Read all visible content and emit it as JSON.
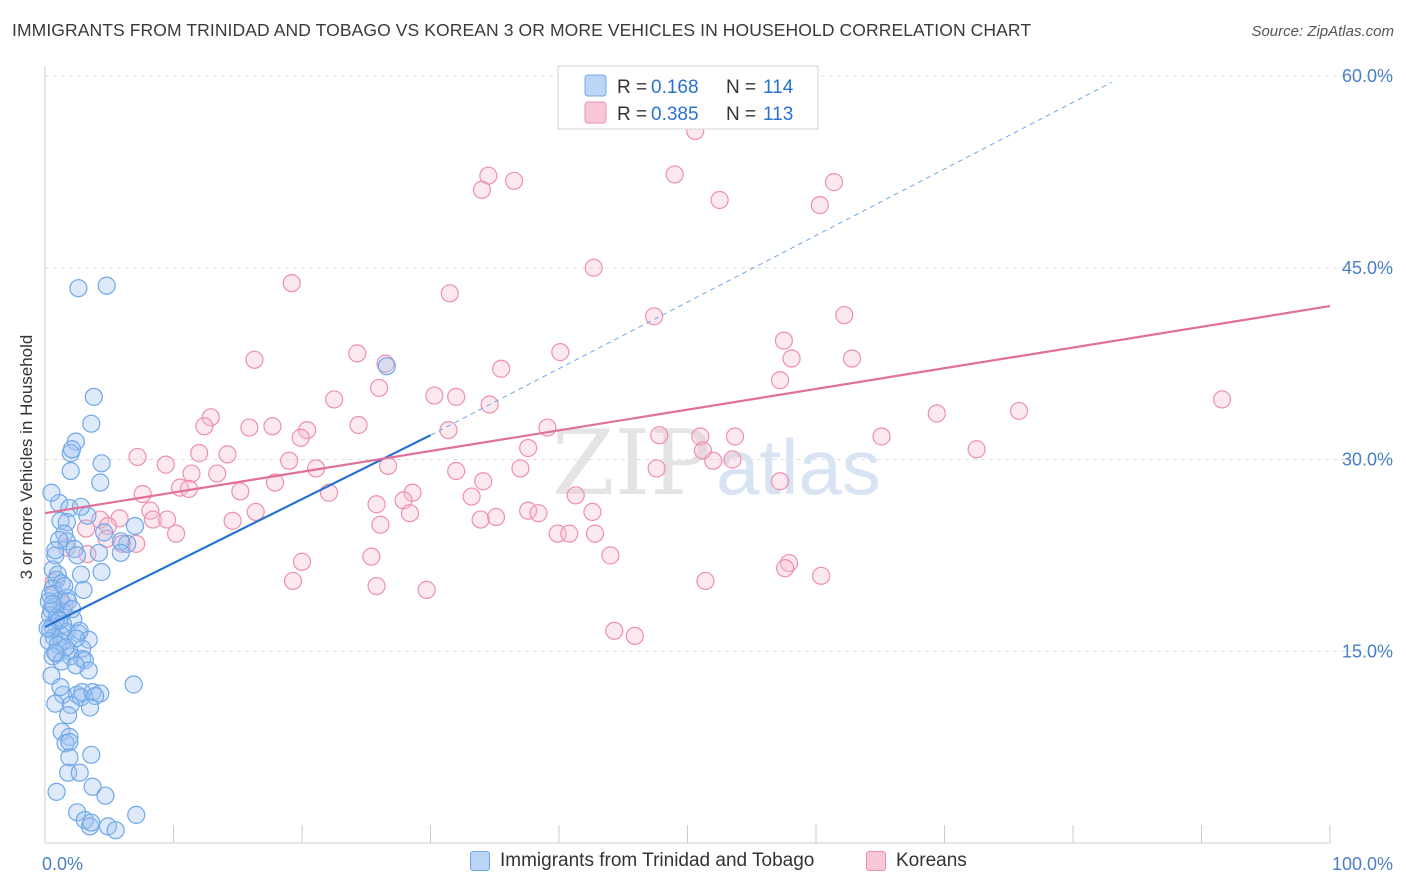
{
  "title": "IMMIGRANTS FROM TRINIDAD AND TOBAGO VS KOREAN 3 OR MORE VEHICLES IN HOUSEHOLD CORRELATION CHART",
  "source": "Source: ZipAtlas.com",
  "watermark": {
    "zip": "ZIP",
    "atlas": "atlas"
  },
  "colors": {
    "blue": "#6fa8e8",
    "blue_fill": "rgba(160,196,240,0.35)",
    "blue_line": "#2a72d0",
    "pink": "#ee8fb0",
    "pink_fill": "rgba(246,188,208,0.35)",
    "pink_line": "#e07099",
    "tick_label": "#4a7fc8",
    "grid": "#dddddd"
  },
  "legend": {
    "items": [
      {
        "r_label": "R =",
        "r_value": "0.168",
        "n_label": "N =",
        "n_value": "114"
      },
      {
        "r_label": "R =",
        "r_value": "0.385",
        "n_label": "N =",
        "n_value": "113"
      }
    ]
  },
  "bottom_legend": [
    "Immigrants from Trinidad and Tobago",
    "Koreans"
  ],
  "chart_data": {
    "type": "scatter",
    "title": "IMMIGRANTS FROM TRINIDAD AND TOBAGO VS KOREAN 3 OR MORE VEHICLES IN HOUSEHOLD CORRELATION CHART",
    "xlabel": "",
    "ylabel": "3 or more Vehicles in Household",
    "xlim": [
      0,
      100
    ],
    "ylim": [
      0,
      60
    ],
    "x_tick_labels": [
      "0.0%",
      "100.0%"
    ],
    "y_ticks": [
      15,
      30,
      45,
      60
    ],
    "y_tick_labels": [
      "15.0%",
      "30.0%",
      "45.0%",
      "60.0%"
    ],
    "grid": "horizontal dashed",
    "legend_position": "top-center",
    "series": [
      {
        "name": "Immigrants from Trinidad and Tobago",
        "color": "blue",
        "R": 0.168,
        "N": 114,
        "trend": {
          "x0": 0,
          "y0": 16.9,
          "x1": 30,
          "y1": 31.9,
          "dashed_to_x": 83,
          "dashed_to_y": 59.5
        },
        "points": [
          [
            2.6,
            43.4
          ],
          [
            4.8,
            43.6
          ],
          [
            3.8,
            34.9
          ],
          [
            3.6,
            32.8
          ],
          [
            2.4,
            31.4
          ],
          [
            2.0,
            30.5
          ],
          [
            4.4,
            29.7
          ],
          [
            2.0,
            29.1
          ],
          [
            4.3,
            28.2
          ],
          [
            1.1,
            26.6
          ],
          [
            1.9,
            26.2
          ],
          [
            3.3,
            25.6
          ],
          [
            1.2,
            25.2
          ],
          [
            1.7,
            25.1
          ],
          [
            7.0,
            24.8
          ],
          [
            1.5,
            24.2
          ],
          [
            1.7,
            23.6
          ],
          [
            6.4,
            23.4
          ],
          [
            5.9,
            23.6
          ],
          [
            2.3,
            23.0
          ],
          [
            4.2,
            22.7
          ],
          [
            5.9,
            22.7
          ],
          [
            2.5,
            22.5
          ],
          [
            0.8,
            22.5
          ],
          [
            0.6,
            21.4
          ],
          [
            2.8,
            21.0
          ],
          [
            4.4,
            21.2
          ],
          [
            1.0,
            21.0
          ],
          [
            0.9,
            20.6
          ],
          [
            1.3,
            20.3
          ],
          [
            0.6,
            19.9
          ],
          [
            0.7,
            19.5
          ],
          [
            1.7,
            19.2
          ],
          [
            1.2,
            19.0
          ],
          [
            0.3,
            18.9
          ],
          [
            0.7,
            18.5
          ],
          [
            0.5,
            18.2
          ],
          [
            1.4,
            18.1
          ],
          [
            0.4,
            17.8
          ],
          [
            0.9,
            17.6
          ],
          [
            2.2,
            17.5
          ],
          [
            0.8,
            17.2
          ],
          [
            1.4,
            17.1
          ],
          [
            0.6,
            16.9
          ],
          [
            0.4,
            16.7
          ],
          [
            1.7,
            16.5
          ],
          [
            2.6,
            16.4
          ],
          [
            2.7,
            16.6
          ],
          [
            1.2,
            16.3
          ],
          [
            0.7,
            16.1
          ],
          [
            3.4,
            15.9
          ],
          [
            0.3,
            15.8
          ],
          [
            1.3,
            15.7
          ],
          [
            1.0,
            15.5
          ],
          [
            2.9,
            15.2
          ],
          [
            1.9,
            15.0
          ],
          [
            0.9,
            14.8
          ],
          [
            0.6,
            14.6
          ],
          [
            2.0,
            14.6
          ],
          [
            2.9,
            14.4
          ],
          [
            3.1,
            14.3
          ],
          [
            1.3,
            14.2
          ],
          [
            3.4,
            13.5
          ],
          [
            6.9,
            12.4
          ],
          [
            1.4,
            11.6
          ],
          [
            2.5,
            11.6
          ],
          [
            2.9,
            11.8
          ],
          [
            3.7,
            11.8
          ],
          [
            4.3,
            11.7
          ],
          [
            2.8,
            11.4
          ],
          [
            3.9,
            11.5
          ],
          [
            0.8,
            10.9
          ],
          [
            2.0,
            10.8
          ],
          [
            3.5,
            10.6
          ],
          [
            1.8,
            10.0
          ],
          [
            1.3,
            8.7
          ],
          [
            1.9,
            8.3
          ],
          [
            1.6,
            7.8
          ],
          [
            1.9,
            7.9
          ],
          [
            3.6,
            6.9
          ],
          [
            1.9,
            6.7
          ],
          [
            1.8,
            5.5
          ],
          [
            2.7,
            5.5
          ],
          [
            3.7,
            4.4
          ],
          [
            0.9,
            4.0
          ],
          [
            4.7,
            3.7
          ],
          [
            2.5,
            2.4
          ],
          [
            7.1,
            2.2
          ],
          [
            3.1,
            1.8
          ],
          [
            3.5,
            1.3
          ],
          [
            3.6,
            1.6
          ],
          [
            4.9,
            1.3
          ],
          [
            5.5,
            1.0
          ],
          [
            4.6,
            24.3
          ],
          [
            26.6,
            37.3
          ],
          [
            2.1,
            30.8
          ],
          [
            0.5,
            27.4
          ],
          [
            2.8,
            26.3
          ],
          [
            1.1,
            23.7
          ],
          [
            0.8,
            22.9
          ],
          [
            1.5,
            20.1
          ],
          [
            3.0,
            19.8
          ],
          [
            0.4,
            19.4
          ],
          [
            1.8,
            18.9
          ],
          [
            0.6,
            18.7
          ],
          [
            2.1,
            18.3
          ],
          [
            1.1,
            17.4
          ],
          [
            0.2,
            16.8
          ],
          [
            2.4,
            16.0
          ],
          [
            1.6,
            15.3
          ],
          [
            0.8,
            14.9
          ],
          [
            2.4,
            13.9
          ],
          [
            0.5,
            13.1
          ],
          [
            1.2,
            12.2
          ]
        ]
      },
      {
        "name": "Koreans",
        "color": "pink",
        "R": 0.385,
        "N": 113,
        "trend": {
          "x0": 0,
          "y0": 25.8,
          "x1": 100,
          "y1": 42.0
        },
        "points": [
          [
            50.6,
            55.7
          ],
          [
            34.5,
            52.2
          ],
          [
            36.5,
            51.8
          ],
          [
            34.0,
            51.1
          ],
          [
            49.0,
            52.3
          ],
          [
            61.4,
            51.7
          ],
          [
            52.5,
            50.3
          ],
          [
            60.3,
            49.9
          ],
          [
            42.7,
            45.0
          ],
          [
            19.2,
            43.8
          ],
          [
            31.5,
            43.0
          ],
          [
            47.4,
            41.2
          ],
          [
            62.2,
            41.3
          ],
          [
            57.5,
            39.3
          ],
          [
            24.3,
            38.3
          ],
          [
            40.1,
            38.4
          ],
          [
            16.3,
            37.8
          ],
          [
            58.1,
            37.9
          ],
          [
            62.8,
            37.9
          ],
          [
            35.5,
            37.1
          ],
          [
            26.5,
            37.5
          ],
          [
            57.2,
            36.2
          ],
          [
            26.0,
            35.6
          ],
          [
            22.5,
            34.7
          ],
          [
            30.3,
            35.0
          ],
          [
            32.0,
            34.9
          ],
          [
            34.6,
            34.3
          ],
          [
            91.6,
            34.7
          ],
          [
            69.4,
            33.6
          ],
          [
            75.8,
            33.8
          ],
          [
            12.9,
            33.3
          ],
          [
            12.4,
            32.6
          ],
          [
            15.9,
            32.5
          ],
          [
            17.7,
            32.6
          ],
          [
            20.4,
            32.3
          ],
          [
            19.9,
            31.7
          ],
          [
            39.1,
            32.5
          ],
          [
            24.4,
            32.7
          ],
          [
            31.4,
            32.3
          ],
          [
            47.8,
            31.9
          ],
          [
            51.0,
            31.8
          ],
          [
            53.7,
            31.8
          ],
          [
            65.1,
            31.8
          ],
          [
            72.5,
            30.8
          ],
          [
            37.6,
            30.9
          ],
          [
            51.2,
            30.7
          ],
          [
            7.2,
            30.2
          ],
          [
            12.0,
            30.5
          ],
          [
            14.2,
            30.4
          ],
          [
            9.4,
            29.6
          ],
          [
            19.0,
            29.9
          ],
          [
            21.1,
            29.3
          ],
          [
            32.0,
            29.1
          ],
          [
            26.7,
            29.5
          ],
          [
            37.0,
            29.3
          ],
          [
            47.6,
            29.3
          ],
          [
            52.0,
            29.9
          ],
          [
            53.5,
            30.0
          ],
          [
            11.4,
            28.9
          ],
          [
            13.4,
            28.9
          ],
          [
            10.5,
            27.8
          ],
          [
            11.2,
            27.7
          ],
          [
            17.9,
            28.2
          ],
          [
            34.1,
            28.3
          ],
          [
            57.2,
            28.3
          ],
          [
            7.6,
            27.3
          ],
          [
            15.2,
            27.5
          ],
          [
            22.1,
            27.4
          ],
          [
            28.6,
            27.4
          ],
          [
            33.2,
            27.1
          ],
          [
            27.9,
            26.8
          ],
          [
            25.8,
            26.5
          ],
          [
            41.3,
            27.2
          ],
          [
            8.2,
            26.0
          ],
          [
            16.4,
            25.9
          ],
          [
            28.4,
            25.8
          ],
          [
            35.1,
            25.5
          ],
          [
            37.6,
            26.0
          ],
          [
            38.4,
            25.8
          ],
          [
            42.6,
            25.9
          ],
          [
            4.3,
            25.3
          ],
          [
            5.8,
            25.4
          ],
          [
            8.4,
            25.3
          ],
          [
            9.5,
            25.3
          ],
          [
            14.6,
            25.2
          ],
          [
            26.1,
            24.9
          ],
          [
            33.9,
            25.3
          ],
          [
            42.8,
            24.2
          ],
          [
            39.9,
            24.2
          ],
          [
            40.8,
            24.2
          ],
          [
            4.9,
            24.8
          ],
          [
            3.2,
            24.6
          ],
          [
            10.2,
            24.2
          ],
          [
            4.8,
            23.8
          ],
          [
            6.0,
            23.4
          ],
          [
            7.1,
            23.4
          ],
          [
            1.7,
            23.1
          ],
          [
            3.3,
            22.6
          ],
          [
            20.0,
            22.0
          ],
          [
            25.4,
            22.4
          ],
          [
            44.0,
            22.5
          ],
          [
            57.9,
            21.9
          ],
          [
            57.6,
            21.5
          ],
          [
            60.4,
            20.9
          ],
          [
            19.3,
            20.5
          ],
          [
            51.4,
            20.5
          ],
          [
            25.8,
            20.1
          ],
          [
            29.7,
            19.8
          ],
          [
            1.2,
            19.0
          ],
          [
            1.5,
            18.6
          ],
          [
            0.7,
            20.4
          ],
          [
            44.3,
            16.6
          ],
          [
            45.9,
            16.2
          ]
        ]
      }
    ]
  }
}
